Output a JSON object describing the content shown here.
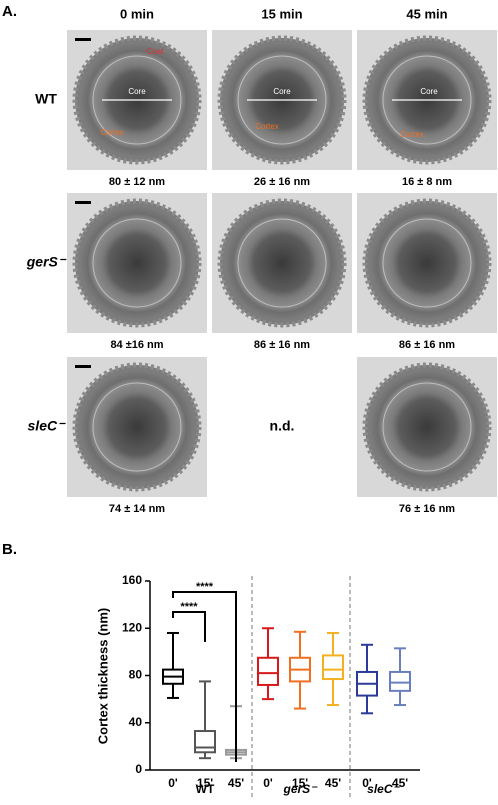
{
  "panel_a": {
    "label": "A.",
    "columns": [
      "0 min",
      "15 min",
      "45 min"
    ],
    "rows": [
      {
        "label": "WT",
        "cells": [
          {
            "measurement": "80 ± 12 nm",
            "annotations": [
              "Coat",
              "Core",
              "Cortex"
            ]
          },
          {
            "measurement": "26 ± 16 nm",
            "annotations": [
              "Core",
              "Cortex"
            ]
          },
          {
            "measurement": "16 ± 8 nm",
            "annotations": [
              "Core",
              "Cortex"
            ]
          }
        ]
      },
      {
        "label": "gerS⁻",
        "cells": [
          {
            "measurement": "84 ±16 nm"
          },
          {
            "measurement": "86 ± 16 nm"
          },
          {
            "measurement": "86 ± 16 nm"
          }
        ]
      },
      {
        "label": "sleC⁻",
        "cells": [
          {
            "measurement": "74 ± 14 nm"
          },
          {
            "text": "n.d."
          },
          {
            "measurement": "76 ± 16 nm"
          }
        ]
      }
    ]
  },
  "chart_data": {
    "type": "box",
    "label": "B.",
    "ylabel": "Cortex thickness (nm)",
    "ylim": [
      0,
      160
    ],
    "yticks": [
      0,
      40,
      80,
      120,
      160
    ],
    "groups": [
      {
        "name": "WT",
        "boxes": [
          {
            "category": "0'",
            "color": "#000000",
            "min": 61,
            "q1": 73,
            "median": 79,
            "q3": 85,
            "max": 116
          },
          {
            "category": "15'",
            "color": "#555555",
            "min": 10,
            "q1": 15,
            "median": 19,
            "q3": 33,
            "max": 75
          },
          {
            "category": "45'",
            "color": "#999999",
            "min": 10,
            "q1": 13,
            "median": 15,
            "q3": 17,
            "max": 54
          }
        ]
      },
      {
        "name": "gerS⁻",
        "boxes": [
          {
            "category": "0'",
            "color": "#d7191c",
            "min": 60,
            "q1": 72,
            "median": 82,
            "q3": 95,
            "max": 120
          },
          {
            "category": "15'",
            "color": "#f07020",
            "min": 52,
            "q1": 75,
            "median": 85,
            "q3": 95,
            "max": 117
          },
          {
            "category": "45'",
            "color": "#f5b022",
            "min": 55,
            "q1": 77,
            "median": 85,
            "q3": 97,
            "max": 116
          }
        ]
      },
      {
        "name": "sleC⁻",
        "boxes": [
          {
            "category": "0'",
            "color": "#2a3a9a",
            "min": 48,
            "q1": 63,
            "median": 73,
            "q3": 83,
            "max": 106
          },
          {
            "category": "45'",
            "color": "#6a7fc0",
            "min": 55,
            "q1": 67,
            "median": 74,
            "q3": 83,
            "max": 103
          }
        ]
      }
    ],
    "annotations": [
      "****",
      "****"
    ]
  }
}
